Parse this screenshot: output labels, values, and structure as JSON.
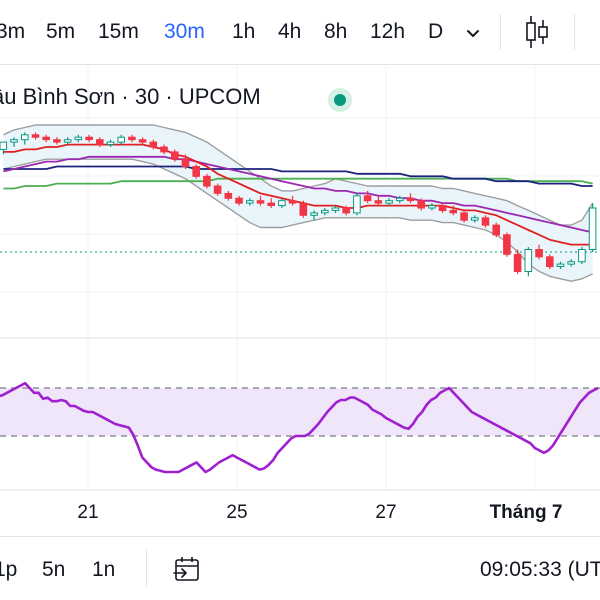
{
  "toolbar": {
    "intervals": [
      {
        "label": "3m",
        "active": false
      },
      {
        "label": "5m",
        "active": false
      },
      {
        "label": "15m",
        "active": false
      },
      {
        "label": "30m",
        "active": true
      },
      {
        "label": "1h",
        "active": false
      },
      {
        "label": "4h",
        "active": false
      },
      {
        "label": "8h",
        "active": false
      },
      {
        "label": "12h",
        "active": false
      },
      {
        "label": "D",
        "active": false
      }
    ],
    "more_icon": "chevron-down-icon",
    "chart_type_icon": "candlestick-icon"
  },
  "legend": {
    "text": "âu Bình Sơn · 30 · UPCOM",
    "status_color": "#089981"
  },
  "bottom": {
    "ranges": [
      "1p",
      "5n",
      "1n"
    ],
    "goto_icon": "calendar-arrow-icon",
    "clock": "09:05:33 (UT"
  },
  "colors": {
    "up": "#089981",
    "down": "#f23645",
    "sma_red": "#e02020",
    "sma_purple": "#9c27b0",
    "sma_blue": "#1a237e",
    "sma_green": "#4caf50",
    "bb_band": "#9e9e9e",
    "bb_fill": "#e8f4fb",
    "rsi_line": "#a020d0",
    "rsi_fill": "#efe6fa"
  },
  "chart_data": {
    "type": "candlestick",
    "x_axis": {
      "tick_labels": [
        "21",
        "25",
        "27",
        "Tháng 7"
      ]
    },
    "price": {
      "ylim": [
        0,
        100
      ],
      "candles": [
        [
          74,
          77,
          72,
          77
        ],
        [
          77,
          79,
          75,
          78
        ],
        [
          78,
          81,
          76,
          80
        ],
        [
          80,
          81,
          78,
          79
        ],
        [
          79,
          80,
          77,
          78
        ],
        [
          78,
          79,
          76,
          77
        ],
        [
          77,
          79,
          76,
          78
        ],
        [
          78,
          80,
          77,
          79
        ],
        [
          79,
          80,
          77,
          78
        ],
        [
          78,
          79,
          75,
          76
        ],
        [
          76,
          78,
          75,
          77
        ],
        [
          77,
          80,
          76,
          79
        ],
        [
          79,
          80,
          77,
          78
        ],
        [
          78,
          79,
          76,
          77
        ],
        [
          77,
          78,
          74,
          75
        ],
        [
          75,
          76,
          72,
          73
        ],
        [
          73,
          74,
          69,
          70
        ],
        [
          70,
          72,
          66,
          67
        ],
        [
          67,
          68,
          62,
          63
        ],
        [
          63,
          64,
          58,
          59
        ],
        [
          59,
          60,
          55,
          56
        ],
        [
          56,
          57,
          53,
          54
        ],
        [
          54,
          55,
          51,
          52
        ],
        [
          52,
          54,
          51,
          53
        ],
        [
          53,
          55,
          51,
          52
        ],
        [
          52,
          54,
          50,
          51
        ],
        [
          51,
          54,
          50,
          53
        ],
        [
          53,
          55,
          51,
          52
        ],
        [
          52,
          53,
          46,
          47
        ],
        [
          47,
          49,
          45,
          48
        ],
        [
          48,
          50,
          47,
          49
        ],
        [
          49,
          51,
          48,
          50
        ],
        [
          50,
          51,
          47,
          48
        ],
        [
          48,
          56,
          47,
          55
        ],
        [
          55,
          57,
          52,
          53
        ],
        [
          53,
          55,
          51,
          52
        ],
        [
          52,
          54,
          51,
          53
        ],
        [
          53,
          55,
          52,
          54
        ],
        [
          54,
          56,
          52,
          53
        ],
        [
          53,
          54,
          49,
          50
        ],
        [
          50,
          52,
          49,
          51
        ],
        [
          51,
          52,
          48,
          49
        ],
        [
          49,
          51,
          47,
          48
        ],
        [
          48,
          49,
          44,
          45
        ],
        [
          45,
          47,
          44,
          46
        ],
        [
          46,
          47,
          42,
          43
        ],
        [
          43,
          44,
          38,
          39
        ],
        [
          39,
          40,
          30,
          31
        ],
        [
          31,
          33,
          23,
          24
        ],
        [
          24,
          34,
          22,
          33
        ],
        [
          33,
          35,
          29,
          30
        ],
        [
          30,
          31,
          25,
          26
        ],
        [
          26,
          28,
          25,
          27
        ],
        [
          27,
          29,
          26,
          28
        ],
        [
          28,
          34,
          27,
          33
        ],
        [
          33,
          52,
          32,
          50
        ]
      ],
      "sma_red": [
        73,
        73,
        74,
        74,
        75,
        75,
        76,
        76,
        76,
        76,
        76,
        76,
        76,
        76,
        75,
        74,
        72,
        71,
        69,
        67,
        64,
        62,
        60,
        58,
        56,
        55,
        54,
        53,
        52,
        51,
        51,
        51,
        50,
        50,
        51,
        51,
        51,
        51,
        51,
        51,
        51,
        51,
        50,
        49,
        49,
        48,
        47,
        45,
        43,
        41,
        39,
        37,
        36,
        35,
        35,
        35
      ],
      "sma_purple": [
        65,
        66,
        67,
        68,
        69,
        69,
        70,
        70,
        71,
        71,
        71,
        71,
        71,
        71,
        71,
        71,
        70,
        70,
        69,
        68,
        67,
        66,
        65,
        64,
        63,
        62,
        61,
        60,
        59,
        58,
        58,
        57,
        57,
        56,
        56,
        55,
        55,
        54,
        54,
        53,
        53,
        52,
        52,
        51,
        51,
        50,
        49,
        48,
        47,
        46,
        45,
        44,
        43,
        42,
        41,
        40
      ],
      "sma_blue": [
        66,
        66,
        66,
        66,
        66,
        67,
        67,
        67,
        67,
        67,
        67,
        67,
        67,
        67,
        67,
        67,
        67,
        67,
        66,
        66,
        66,
        66,
        66,
        66,
        66,
        66,
        65,
        65,
        65,
        65,
        65,
        65,
        65,
        64,
        64,
        64,
        64,
        64,
        63,
        63,
        63,
        63,
        62,
        62,
        62,
        62,
        61,
        61,
        61,
        61,
        60,
        60,
        60,
        60,
        59,
        59
      ],
      "sma_green": [
        58,
        58,
        59,
        59,
        59,
        60,
        60,
        60,
        60,
        60,
        60,
        61,
        61,
        61,
        61,
        61,
        61,
        61,
        61,
        61,
        62,
        62,
        62,
        62,
        62,
        62,
        62,
        62,
        62,
        62,
        62,
        62,
        62,
        62,
        62,
        62,
        62,
        62,
        62,
        62,
        62,
        62,
        62,
        62,
        62,
        62,
        62,
        62,
        61,
        61,
        61,
        61,
        61,
        61,
        61,
        60
      ],
      "bb_upper": [
        80,
        82,
        83,
        84,
        84,
        84,
        84,
        84,
        84,
        84,
        84,
        84,
        84,
        84,
        84,
        83,
        82,
        81,
        79,
        77,
        74,
        71,
        68,
        65,
        62,
        59,
        57,
        57,
        58,
        59,
        60,
        62,
        61,
        60,
        59,
        59,
        59,
        59,
        59,
        59,
        59,
        58,
        58,
        57,
        56,
        55,
        54,
        53,
        51,
        49,
        47,
        45,
        43,
        43,
        45,
        52
      ],
      "bb_lower": [
        66,
        67,
        68,
        69,
        70,
        70,
        70,
        70,
        70,
        70,
        70,
        70,
        70,
        69,
        68,
        66,
        64,
        62,
        59,
        56,
        53,
        50,
        47,
        44,
        42,
        42,
        42,
        43,
        44,
        45,
        46,
        46,
        46,
        46,
        46,
        46,
        46,
        46,
        45,
        45,
        45,
        44,
        44,
        43,
        42,
        41,
        39,
        36,
        32,
        27,
        24,
        22,
        21,
        20,
        21,
        23
      ]
    },
    "rsi": {
      "ylim": [
        0,
        100
      ],
      "upper_band": 70,
      "lower_band": 30,
      "values": [
        63,
        64,
        66,
        68,
        70,
        72,
        74,
        70,
        66,
        66,
        61,
        62,
        59,
        59,
        60,
        59,
        55,
        55,
        53,
        51,
        50,
        50,
        48,
        46,
        44,
        42,
        40,
        39,
        38,
        37,
        31,
        22,
        12,
        8,
        4,
        2,
        1,
        0,
        0,
        0,
        0,
        2,
        4,
        6,
        8,
        4,
        0,
        2,
        5,
        8,
        10,
        12,
        14,
        12,
        10,
        8,
        6,
        4,
        2,
        3,
        6,
        10,
        16,
        20,
        24,
        28,
        30,
        30,
        30,
        32,
        36,
        40,
        45,
        50,
        54,
        58,
        60,
        60,
        62,
        62,
        60,
        58,
        56,
        52,
        50,
        48,
        45,
        43,
        41,
        39,
        37,
        36,
        40,
        46,
        50,
        56,
        60,
        62,
        66,
        68,
        70,
        66,
        62,
        58,
        54,
        50,
        48,
        46,
        44,
        42,
        40,
        38,
        36,
        34,
        32,
        30,
        28,
        26,
        24,
        20,
        18,
        16,
        18,
        22,
        28,
        34,
        40,
        46,
        52,
        58,
        62,
        66,
        68,
        70
      ]
    }
  }
}
